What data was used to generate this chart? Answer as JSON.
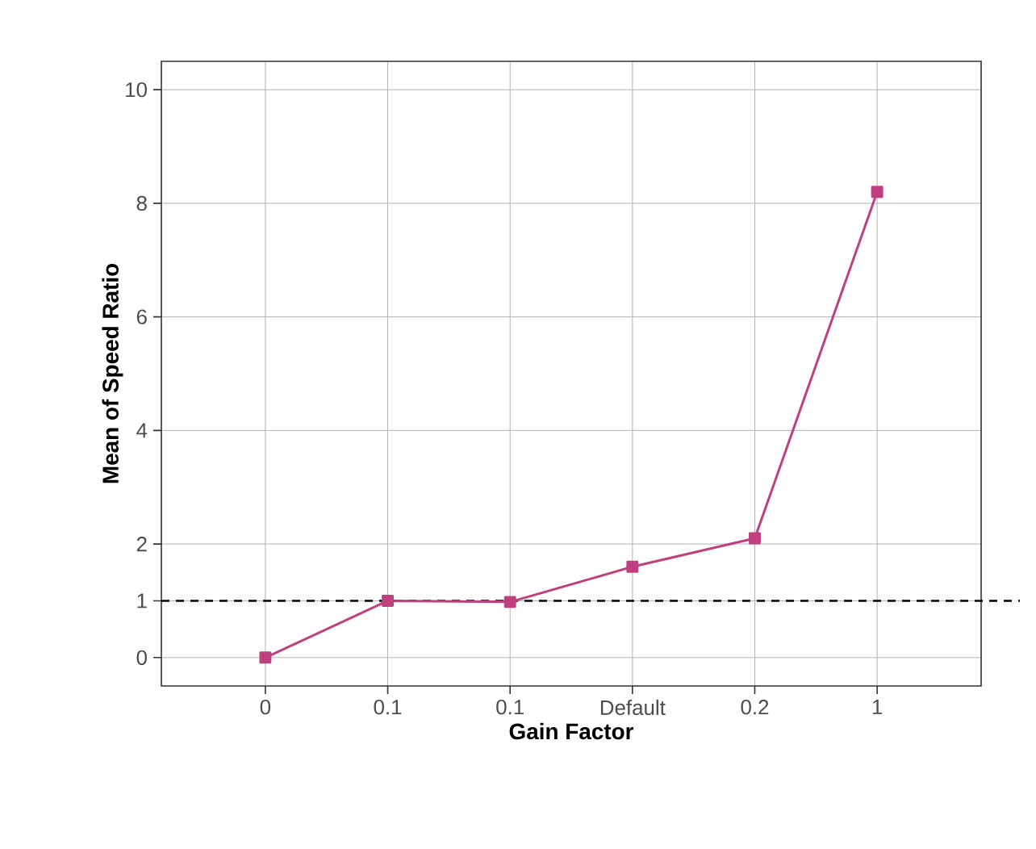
{
  "chart_data": {
    "type": "line",
    "xlabel": "Gain Factor",
    "ylabel": "Mean of Speed Ratio",
    "categories": [
      "0",
      "0.1",
      "0.1",
      "Default",
      "0.2",
      "1"
    ],
    "series": [
      {
        "color": "#c0407f",
        "values": [
          0,
          1.0,
          0.98,
          1.6,
          2.1,
          8.2
        ]
      }
    ],
    "ylim": [
      -0.5,
      10.5
    ],
    "yticks": [
      0,
      1,
      2,
      4,
      6,
      8,
      10
    ],
    "ref_lines": [
      {
        "axis": "y",
        "value": 1,
        "line_style": "dashed",
        "color": "#000000"
      }
    ],
    "grid": true,
    "marker": "square",
    "line_style": "solid"
  }
}
